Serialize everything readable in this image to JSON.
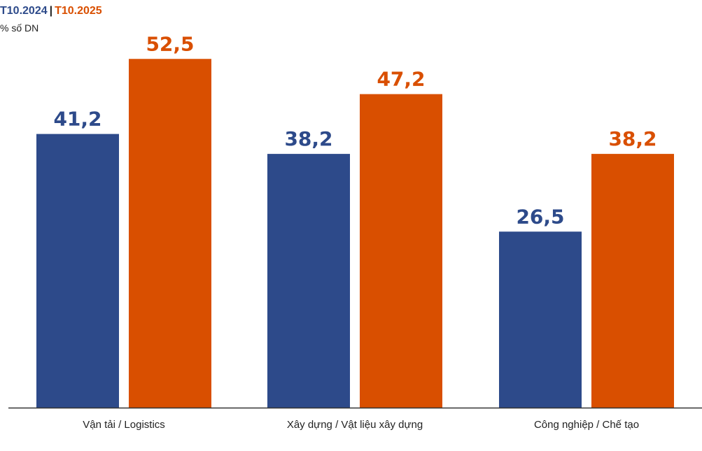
{
  "legend": {
    "series1_label": "T10.2024",
    "series2_label": "T10.2025",
    "separator": "|"
  },
  "unit_label": "% số DN",
  "colors": {
    "series1": "#2d4a8a",
    "series2": "#d94f00",
    "axis": "#333333"
  },
  "chart_data": {
    "type": "bar",
    "categories": [
      "Vận tải / Logistics",
      "Xây dựng / Vật liệu xây dựng",
      "Công nghiệp / Chế tạo"
    ],
    "series": [
      {
        "name": "T10.2024",
        "values": [
          41.2,
          38.2,
          26.5
        ],
        "labels": [
          "41,2",
          "38,2",
          "26,5"
        ]
      },
      {
        "name": "T10.2025",
        "values": [
          52.5,
          47.2,
          38.2
        ],
        "labels": [
          "52,5",
          "47,2",
          "38,2"
        ]
      }
    ],
    "ylabel": "% số DN",
    "ylim": [
      0,
      60
    ],
    "grid": false,
    "legend_position": "top-left"
  }
}
